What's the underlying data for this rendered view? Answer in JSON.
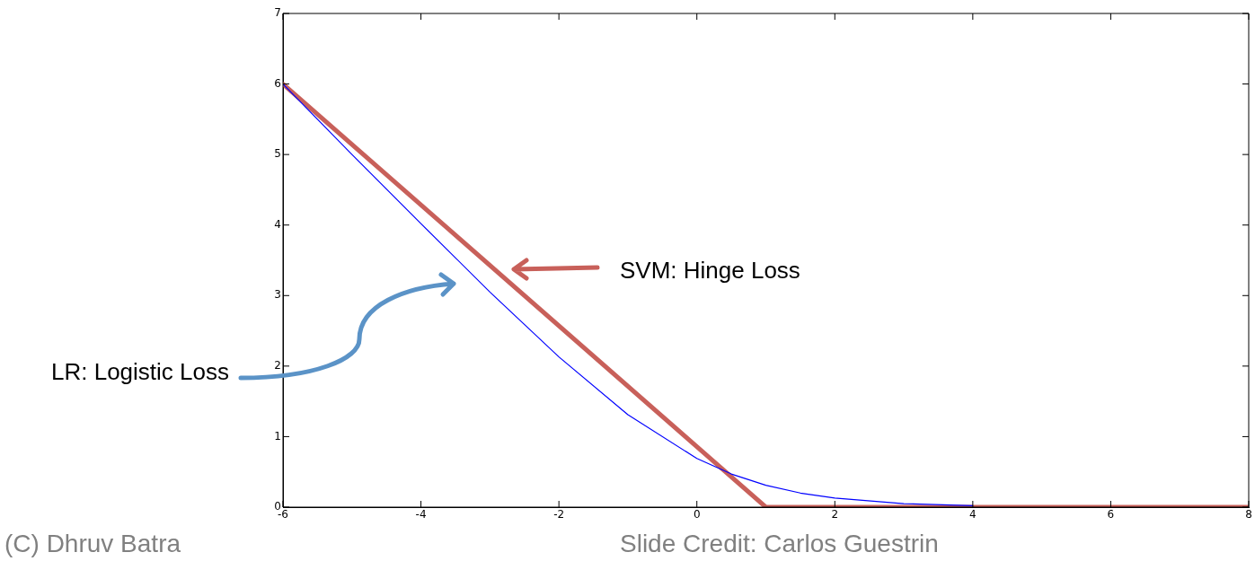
{
  "chart_data": {
    "type": "line",
    "x": [
      -6,
      -5,
      -4,
      -3,
      -2,
      -1,
      0,
      0.5,
      1,
      1.5,
      2,
      3,
      4
    ],
    "series": [
      {
        "color": "#0000ff",
        "values": [
          6.0,
          5.0,
          4.02,
          3.05,
          2.13,
          1.31,
          0.69,
          0.47,
          0.31,
          0.2,
          0.13,
          0.05,
          0.02
        ]
      },
      {
        "color": "#c8605a",
        "x": [
          -6,
          1,
          8
        ],
        "values": [
          6,
          0,
          0
        ]
      }
    ],
    "xlim": [
      -6,
      8
    ],
    "xticks": [
      -6,
      -4,
      -2,
      0,
      2,
      4,
      6,
      8
    ],
    "ylim": [
      0,
      7
    ],
    "yticks": [
      0,
      1,
      2,
      3,
      4,
      5,
      6,
      7
    ],
    "grid": false,
    "legend": false,
    "marker": "none",
    "line_style": "solid",
    "annotations": [
      "SVM: Hinge Loss",
      "LR: Logistic Loss",
      "(C) Dhruv Batra",
      "Slide Credit: Carlos Guestrin"
    ]
  }
}
